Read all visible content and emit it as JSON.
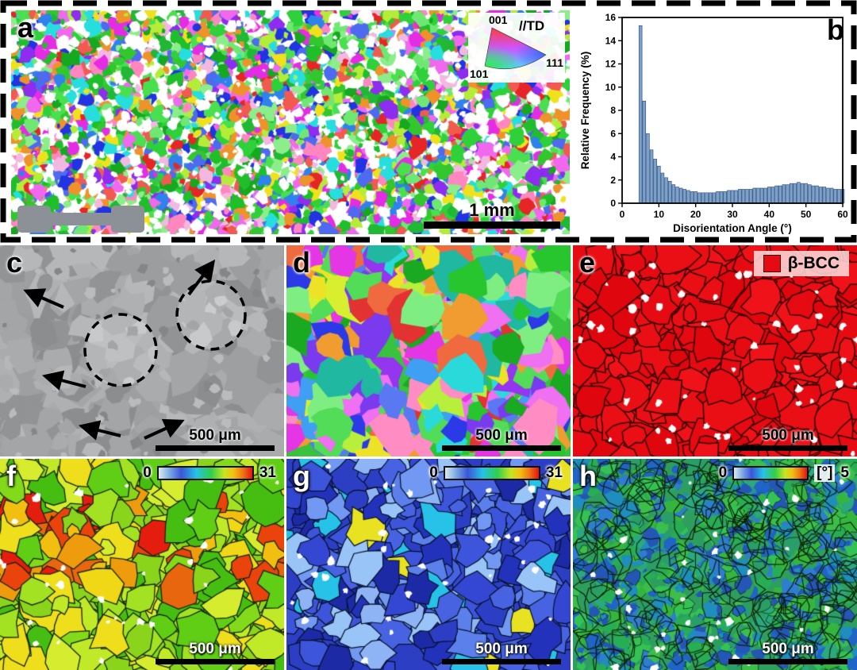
{
  "figure": {
    "panels": {
      "a": {
        "label": "a",
        "scale_bar": "1 mm",
        "ipf_legend": {
          "v001": "001",
          "direction": "//TD",
          "v101": "101",
          "v111": "111"
        }
      },
      "b": {
        "label": "b"
      },
      "c": {
        "label": "c",
        "scale_bar": "500 μm"
      },
      "d": {
        "label": "d",
        "scale_bar": "500 μm"
      },
      "e": {
        "label": "e",
        "scale_bar": "500 μm",
        "phase_legend": {
          "name": "β-BCC",
          "color": "#e60a12"
        }
      },
      "f": {
        "label": "f",
        "scale_bar": "500 μm",
        "colorbar": {
          "min": "0",
          "max": "31"
        }
      },
      "g": {
        "label": "g",
        "scale_bar": "500 μm",
        "colorbar": {
          "min": "0",
          "max": "31"
        }
      },
      "h": {
        "label": "h",
        "scale_bar": "500 μm",
        "colorbar": {
          "min": "0",
          "unit": "[°]",
          "max": "5"
        }
      }
    }
  },
  "chart_data": {
    "type": "bar",
    "title": "",
    "xlabel": "Disorientation Angle (°)",
    "ylabel": "Relative Frequency (%)",
    "xlim": [
      0,
      60
    ],
    "ylim": [
      0,
      16
    ],
    "x_ticks": [
      0,
      10,
      20,
      30,
      40,
      50,
      60
    ],
    "y_ticks": [
      0,
      2,
      4,
      6,
      8,
      10,
      12,
      14,
      16
    ],
    "bar_color": "#7ba0c9",
    "grid": false,
    "legend": "none",
    "x": [
      5,
      6,
      7,
      8,
      9,
      10,
      11,
      12,
      13,
      14,
      15,
      16,
      17,
      18,
      19,
      20,
      21,
      22,
      23,
      24,
      25,
      26,
      27,
      28,
      29,
      30,
      31,
      32,
      33,
      34,
      35,
      36,
      37,
      38,
      39,
      40,
      41,
      42,
      43,
      44,
      45,
      46,
      47,
      48,
      49,
      50,
      51,
      52,
      53,
      54,
      55,
      56,
      57,
      58,
      59,
      60
    ],
    "values": [
      15.3,
      8.8,
      6.0,
      4.6,
      3.8,
      3.2,
      2.6,
      2.2,
      1.9,
      1.6,
      1.4,
      1.3,
      1.2,
      1.1,
      1.0,
      1.0,
      0.9,
      0.9,
      0.9,
      0.9,
      0.9,
      1.0,
      1.0,
      1.0,
      1.1,
      1.1,
      1.1,
      1.2,
      1.2,
      1.2,
      1.2,
      1.3,
      1.3,
      1.3,
      1.3,
      1.4,
      1.4,
      1.5,
      1.5,
      1.6,
      1.6,
      1.7,
      1.7,
      1.8,
      1.7,
      1.7,
      1.6,
      1.5,
      1.5,
      1.4,
      1.4,
      1.3,
      1.3,
      1.2,
      1.2,
      1.2
    ]
  }
}
